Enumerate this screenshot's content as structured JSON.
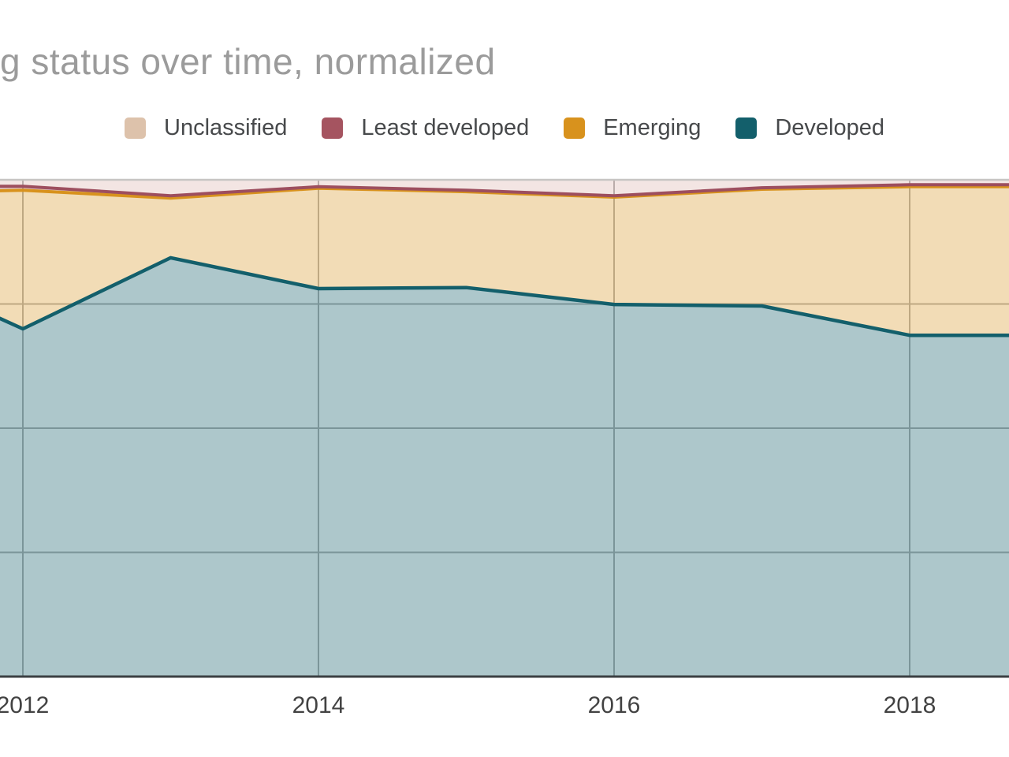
{
  "title": "g status over time, normalized",
  "legend": [
    {
      "label": "Unclassified",
      "swatch": "#ddc2ab"
    },
    {
      "label": "Least developed",
      "swatch": "#a55460"
    },
    {
      "label": "Emerging",
      "swatch": "#d8921d"
    },
    {
      "label": "Developed",
      "swatch": "#135f6b"
    }
  ],
  "colors": {
    "background": "#ffffff",
    "title_text": "#9b9b9b",
    "legend_text": "#47494b",
    "gridline": "#b3b3b3",
    "plot_top_border": "#c7c5c3",
    "x_axis_line": "#3c4043",
    "tick_label_text": "#424242"
  },
  "chart_data": {
    "type": "area",
    "stacked": true,
    "normalized": true,
    "title": "g status over time, normalized",
    "legend_position": "top-center",
    "grid": true,
    "x_axis": {
      "tick_labels": [
        "2012",
        "2014",
        "2016",
        "2018"
      ],
      "ticks": [
        2012,
        2014,
        2016,
        2018
      ],
      "visible_range": [
        2011.845,
        2018.672
      ]
    },
    "y_axis": {
      "min": 0,
      "max": 100,
      "unit": "%",
      "gridline_percents": [
        25,
        50,
        75,
        100
      ],
      "tick_labels_visible": false
    },
    "x": [
      2011.845,
      2012,
      2013,
      2014,
      2015,
      2016,
      2017,
      2018,
      2018.672
    ],
    "series": [
      {
        "name": "Developed",
        "values": [
          72.1,
          70.0,
          84.3,
          78.1,
          78.3,
          74.9,
          74.6,
          68.7,
          68.7
        ],
        "line": "#135f6b",
        "fill": "rgba(19,95,107,0.35)",
        "line_width": 4.5
      },
      {
        "name": "Emerging",
        "values": [
          25.7,
          27.9,
          12.0,
          20.2,
          19.3,
          21.6,
          23.5,
          29.9,
          29.9
        ],
        "line": "#d8921d",
        "fill": "rgba(216,146,29,0.32)",
        "line_width": 4
      },
      {
        "name": "Least developed",
        "values": [
          0.9,
          0.8,
          0.5,
          0.3,
          0.3,
          0.3,
          0.3,
          0.4,
          0.4
        ],
        "line": "#9d4e5e",
        "fill": "rgba(157,78,94,0.30)",
        "line_width": 4
      },
      {
        "name": "Unclassified",
        "values": [
          1.3,
          1.3,
          3.2,
          1.4,
          2.1,
          3.2,
          1.6,
          1.0,
          1.0
        ],
        "line": null,
        "fill": "rgba(209,155,147,0.26)",
        "line_width": 0
      }
    ]
  }
}
